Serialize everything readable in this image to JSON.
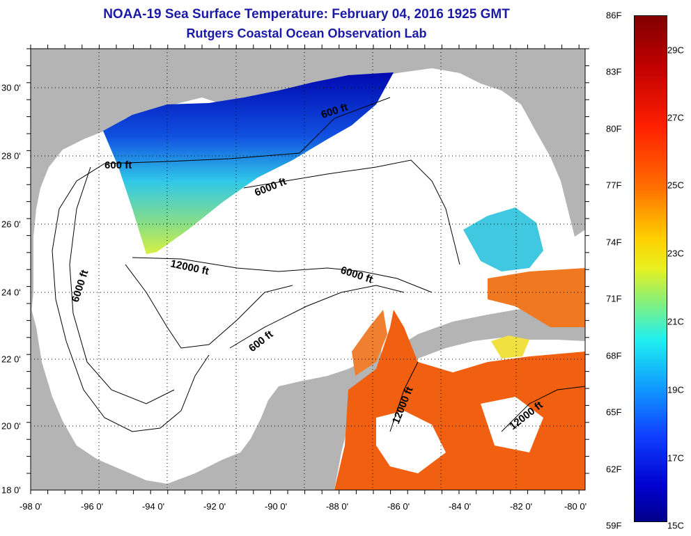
{
  "title": "NOAA-19 Sea Surface Temperature:  February 04, 2016 1925 GMT",
  "subtitle": "Rutgers Coastal Ocean Observation Lab",
  "map": {
    "lon_labels": [
      "-98 0'",
      "-96 0'",
      "-94 0'",
      "-92 0'",
      "-90 0'",
      "-88 0'",
      "-86 0'",
      "-84 0'",
      "-82 0'",
      "-80 0'"
    ],
    "lat_labels": [
      "30 0'",
      "28 0'",
      "26 0'",
      "24 0'",
      "22 0'",
      "20 0'",
      "18 0'"
    ],
    "contour_labels": [
      "600 ft",
      "600 ft",
      "6000 ft",
      "12000 ft",
      "6000 ft",
      "6000 ft",
      "600 ft",
      "12000 ft",
      "12000 ft"
    ],
    "land_color": "#b4b4b4",
    "no_data_color": "#ffffff"
  },
  "colorbar": {
    "f_labels": [
      "86F",
      "83F",
      "80F",
      "77F",
      "74F",
      "71F",
      "68F",
      "65F",
      "62F",
      "59F"
    ],
    "c_labels": [
      "29C",
      "27C",
      "25C",
      "23C",
      "21C",
      "19C",
      "17C",
      "15C"
    ]
  }
}
